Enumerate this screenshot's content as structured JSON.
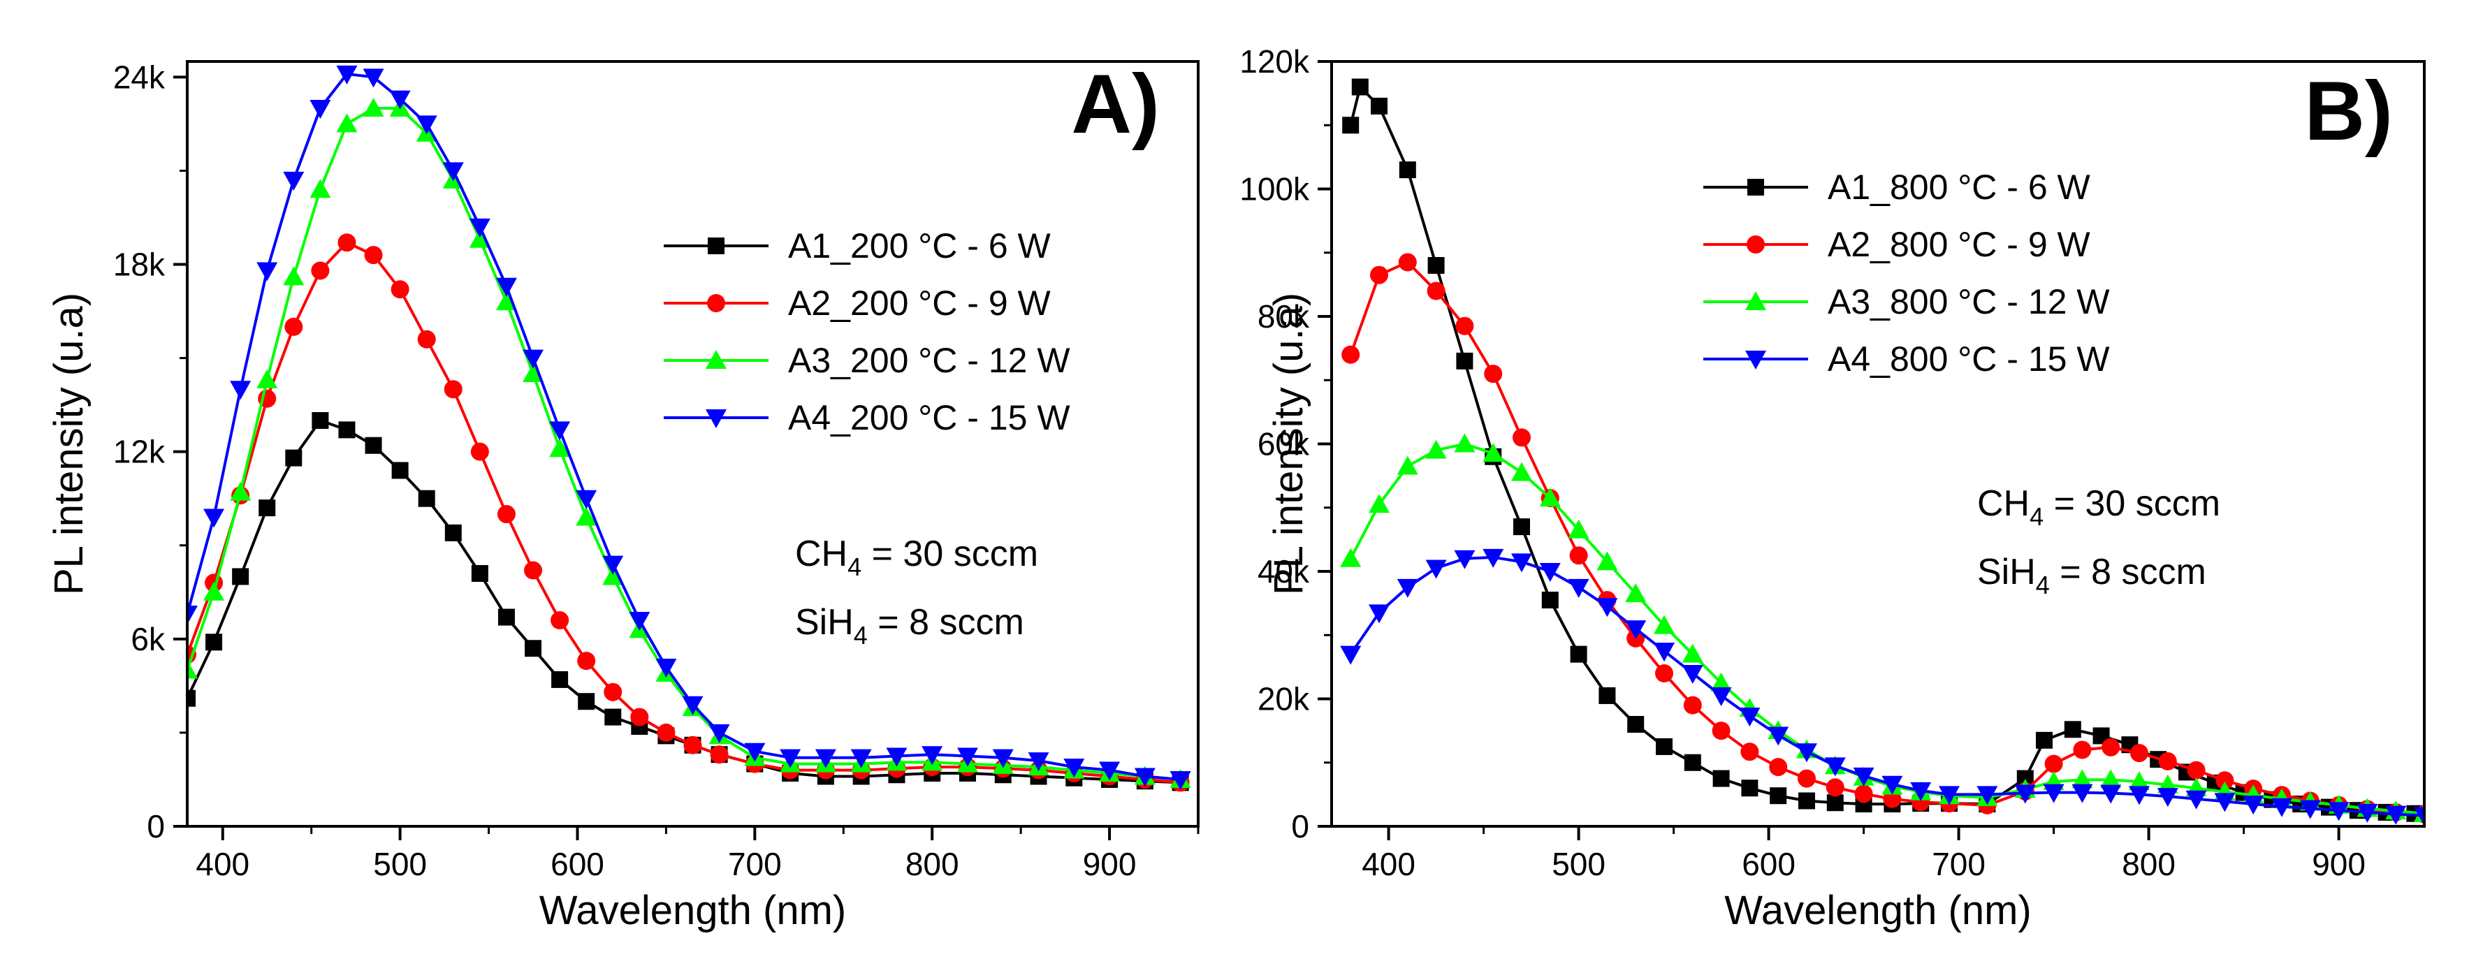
{
  "chart_data": [
    {
      "type": "line",
      "panel_label": "A)",
      "xlabel": "Wavelength (nm)",
      "ylabel": "PL intensity (u.a)",
      "xlim": [
        380,
        950
      ],
      "ylim": [
        0,
        24500
      ],
      "x_ticks": [
        400,
        500,
        600,
        700,
        800,
        900
      ],
      "x_tick_labels": [
        "400",
        "500",
        "600",
        "700",
        "800",
        "900"
      ],
      "y_ticks": [
        0,
        6000,
        12000,
        18000,
        24000
      ],
      "y_tick_labels": [
        "0",
        "6k",
        "12k",
        "18k",
        "24k"
      ],
      "legend_position": "upper-right",
      "annotations": [
        {
          "type": "text",
          "main": "CH",
          "sub": "4",
          "tail": " = 30 sccm"
        },
        {
          "type": "text",
          "main": "SiH",
          "sub": "4",
          "tail": " = 8 sccm"
        }
      ],
      "series": [
        {
          "name": "A1_200 °C - 6 W",
          "color": "#000000",
          "marker": "square",
          "x": [
            380,
            395,
            410,
            425,
            440,
            455,
            470,
            485,
            500,
            515,
            530,
            545,
            560,
            575,
            590,
            605,
            620,
            635,
            650,
            665,
            680,
            700,
            720,
            740,
            760,
            780,
            800,
            820,
            840,
            860,
            880,
            900,
            920,
            940
          ],
          "y": [
            4100,
            5900,
            8000,
            10200,
            11800,
            13000,
            12700,
            12200,
            11400,
            10500,
            9400,
            8100,
            6700,
            5700,
            4700,
            4000,
            3500,
            3200,
            2900,
            2600,
            2300,
            2000,
            1700,
            1600,
            1600,
            1650,
            1700,
            1700,
            1650,
            1600,
            1550,
            1500,
            1450,
            1400
          ]
        },
        {
          "name": "A2_200 °C - 9 W",
          "color": "#ff0000",
          "marker": "circle",
          "x": [
            380,
            395,
            410,
            425,
            440,
            455,
            470,
            485,
            500,
            515,
            530,
            545,
            560,
            575,
            590,
            605,
            620,
            635,
            650,
            665,
            680,
            700,
            720,
            740,
            760,
            780,
            800,
            820,
            840,
            860,
            880,
            900,
            920,
            940
          ],
          "y": [
            5500,
            7800,
            10600,
            13700,
            16000,
            17800,
            18700,
            18300,
            17200,
            15600,
            14000,
            12000,
            10000,
            8200,
            6600,
            5300,
            4300,
            3500,
            3000,
            2600,
            2300,
            2000,
            1800,
            1800,
            1800,
            1850,
            1900,
            1900,
            1850,
            1800,
            1700,
            1600,
            1500,
            1400
          ]
        },
        {
          "name": "A3_200 °C - 12 W",
          "color": "#00ff00",
          "marker": "triangle-up",
          "x": [
            380,
            395,
            410,
            425,
            440,
            455,
            470,
            485,
            500,
            515,
            530,
            545,
            560,
            575,
            590,
            605,
            620,
            635,
            650,
            665,
            680,
            700,
            720,
            740,
            760,
            780,
            800,
            820,
            840,
            860,
            880,
            900,
            920,
            940
          ],
          "y": [
            5000,
            7500,
            10700,
            14300,
            17600,
            20400,
            22500,
            23000,
            23000,
            22200,
            20700,
            18800,
            16800,
            14500,
            12100,
            9900,
            8000,
            6300,
            4900,
            3800,
            2900,
            2200,
            2000,
            2000,
            2000,
            2050,
            2050,
            2000,
            1950,
            1900,
            1800,
            1700,
            1600,
            1500
          ]
        },
        {
          "name": "A4_200 °C - 15 W",
          "color": "#0000ff",
          "marker": "triangle-down",
          "x": [
            380,
            395,
            410,
            425,
            440,
            455,
            470,
            485,
            500,
            515,
            530,
            545,
            560,
            575,
            590,
            605,
            620,
            635,
            650,
            665,
            680,
            700,
            720,
            740,
            760,
            780,
            800,
            820,
            840,
            860,
            880,
            900,
            920,
            940
          ],
          "y": [
            6800,
            9900,
            14000,
            17800,
            20700,
            23000,
            24100,
            24000,
            23300,
            22500,
            21000,
            19200,
            17300,
            15000,
            12700,
            10500,
            8400,
            6600,
            5100,
            3900,
            3000,
            2400,
            2200,
            2200,
            2200,
            2250,
            2300,
            2250,
            2200,
            2100,
            1900,
            1800,
            1600,
            1500
          ]
        }
      ]
    },
    {
      "type": "line",
      "panel_label": "B)",
      "xlabel": "Wavelength (nm)",
      "ylabel": "PL intensity (u.a)",
      "xlim": [
        370,
        945
      ],
      "ylim": [
        0,
        120000
      ],
      "x_ticks": [
        400,
        500,
        600,
        700,
        800,
        900
      ],
      "x_tick_labels": [
        "400",
        "500",
        "600",
        "700",
        "800",
        "900"
      ],
      "y_ticks": [
        0,
        20000,
        40000,
        60000,
        80000,
        100000,
        120000
      ],
      "y_tick_labels": [
        "0",
        "20k",
        "40k",
        "60k",
        "80k",
        "100k",
        "120k"
      ],
      "legend_position": "upper-right",
      "annotations": [
        {
          "type": "text",
          "main": "CH",
          "sub": "4",
          "tail": " = 30 sccm"
        },
        {
          "type": "text",
          "main": "SiH",
          "sub": "4",
          "tail": " = 8 sccm"
        }
      ],
      "series": [
        {
          "name": "A1_800 °C - 6 W",
          "color": "#000000",
          "marker": "square",
          "x": [
            380,
            385,
            395,
            410,
            425,
            440,
            455,
            470,
            485,
            500,
            515,
            530,
            545,
            560,
            575,
            590,
            605,
            620,
            635,
            650,
            665,
            680,
            695,
            715,
            735,
            745,
            760,
            775,
            790,
            805,
            820,
            835,
            850,
            865,
            880,
            895,
            910,
            925,
            940
          ],
          "y": [
            110000,
            116000,
            113000,
            103000,
            88000,
            73000,
            58000,
            47000,
            35500,
            27000,
            20500,
            16000,
            12500,
            10000,
            7500,
            6000,
            4800,
            4000,
            3700,
            3500,
            3500,
            3600,
            3600,
            3500,
            7500,
            13500,
            15200,
            14200,
            12800,
            10500,
            8500,
            6800,
            5300,
            4200,
            3500,
            3000,
            2500,
            2200,
            2000
          ]
        },
        {
          "name": "A2_800 °C - 9 W",
          "color": "#ff0000",
          "marker": "circle",
          "x": [
            380,
            395,
            410,
            425,
            440,
            455,
            470,
            485,
            500,
            515,
            530,
            545,
            560,
            575,
            590,
            605,
            620,
            635,
            650,
            665,
            680,
            695,
            715,
            735,
            750,
            765,
            780,
            795,
            810,
            825,
            840,
            855,
            870,
            885,
            900,
            915,
            930,
            945
          ],
          "y": [
            74000,
            86500,
            88500,
            84000,
            78500,
            71000,
            61000,
            51500,
            42500,
            35500,
            29500,
            24000,
            19000,
            15000,
            11700,
            9300,
            7500,
            6100,
            5100,
            4300,
            3800,
            3600,
            3300,
            5500,
            9800,
            12000,
            12400,
            11500,
            10200,
            8800,
            7200,
            5900,
            4900,
            4000,
            3300,
            2700,
            2200,
            1900
          ]
        },
        {
          "name": "A3_800 °C - 12 W",
          "color": "#00ff00",
          "marker": "triangle-up",
          "x": [
            380,
            395,
            410,
            425,
            440,
            455,
            470,
            485,
            500,
            515,
            530,
            545,
            560,
            575,
            590,
            605,
            620,
            635,
            650,
            665,
            680,
            695,
            715,
            735,
            750,
            765,
            780,
            795,
            810,
            825,
            840,
            855,
            870,
            885,
            900,
            915,
            930,
            945
          ],
          "y": [
            42000,
            50500,
            56500,
            59000,
            60000,
            58500,
            55500,
            51500,
            46500,
            41500,
            36500,
            31500,
            27000,
            22500,
            18500,
            15000,
            12000,
            9500,
            7700,
            6300,
            5400,
            4800,
            4500,
            5800,
            7000,
            7300,
            7300,
            7000,
            6500,
            6000,
            5400,
            4900,
            4300,
            3800,
            3300,
            2800,
            2400,
            2000
          ]
        },
        {
          "name": "A4_800 °C - 15 W",
          "color": "#0000ff",
          "marker": "triangle-down",
          "x": [
            380,
            395,
            410,
            425,
            440,
            455,
            470,
            485,
            500,
            515,
            530,
            545,
            560,
            575,
            590,
            605,
            620,
            635,
            650,
            665,
            680,
            695,
            715,
            735,
            750,
            765,
            780,
            795,
            810,
            825,
            840,
            855,
            870,
            885,
            900,
            915,
            930,
            945
          ],
          "y": [
            27000,
            33500,
            37500,
            40500,
            42000,
            42200,
            41500,
            40000,
            37500,
            34500,
            31000,
            27500,
            24000,
            20500,
            17300,
            14300,
            11700,
            9500,
            7900,
            6600,
            5600,
            5000,
            5000,
            5200,
            5300,
            5300,
            5200,
            5000,
            4700,
            4300,
            3900,
            3500,
            3100,
            2800,
            2500,
            2200,
            1900,
            1700
          ]
        }
      ]
    }
  ]
}
